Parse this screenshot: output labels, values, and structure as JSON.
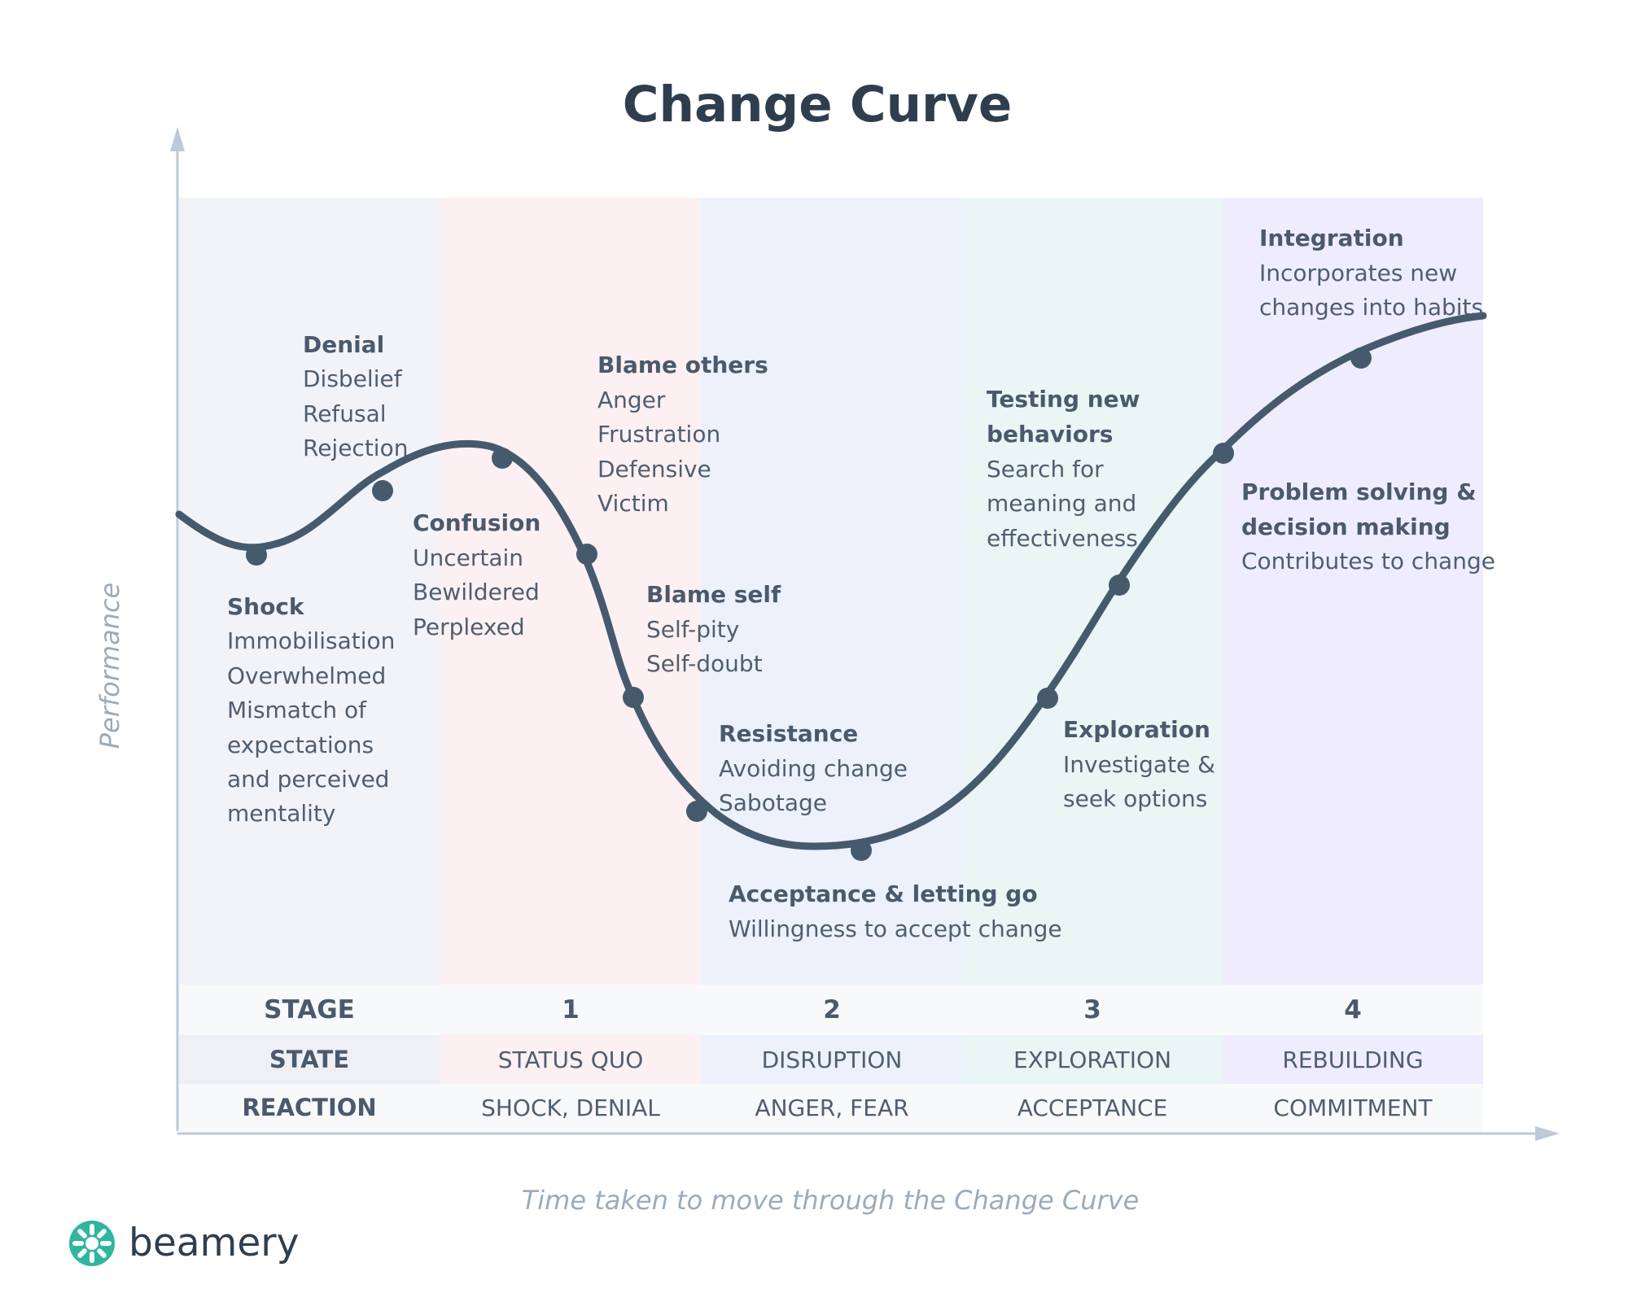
{
  "title": "Change Curve",
  "y_axis_label": "Performance",
  "x_axis_label": "Time taken to move through the Change Curve",
  "brand": {
    "name": "beamery",
    "color": "#2fb5a0"
  },
  "colors": {
    "curve": "#465a6e",
    "axis": "#bcc9d6",
    "bands": [
      "#f2f3f8",
      "#fdf0f2",
      "#ecf1fc",
      "#eaf6f5",
      "#efedfd"
    ],
    "row_header": "#f7f8fa"
  },
  "labels": {
    "shock": {
      "title": "Shock",
      "lines": [
        "Immobilisation",
        "Overwhelmed",
        "Mismatch of",
        "expectations",
        "and perceived",
        "mentality"
      ]
    },
    "denial": {
      "title": "Denial",
      "lines": [
        "Disbelief",
        "Refusal",
        "Rejection"
      ]
    },
    "confusion": {
      "title": "Confusion",
      "lines": [
        "Uncertain",
        "Bewildered",
        "Perplexed"
      ]
    },
    "blame_others": {
      "title": "Blame others",
      "lines": [
        "Anger",
        "Frustration",
        "Defensive",
        "Victim"
      ]
    },
    "blame_self": {
      "title": "Blame self",
      "lines": [
        "Self-pity",
        "Self-doubt"
      ]
    },
    "resistance": {
      "title": "Resistance",
      "lines": [
        "Avoiding change",
        "Sabotage"
      ]
    },
    "acceptance": {
      "title": "Acceptance & letting go",
      "lines": [
        "Willingness to accept change"
      ]
    },
    "exploration": {
      "title": "Exploration",
      "lines": [
        "Investigate &",
        "seek options"
      ]
    },
    "testing": {
      "title_lines": [
        "Testing new",
        "behaviors"
      ],
      "lines": [
        "Search for",
        "meaning and",
        "effectiveness"
      ]
    },
    "problem_solving": {
      "title_lines": [
        "Problem solving &",
        "decision making"
      ],
      "lines": [
        "Contributes to change"
      ]
    },
    "integration": {
      "title": "Integration",
      "lines": [
        "Incorporates new",
        "changes into habits"
      ]
    }
  },
  "table": {
    "stage": {
      "header": "STAGE",
      "values": [
        "1",
        "2",
        "3",
        "4"
      ]
    },
    "state": {
      "header": "STATE",
      "values": [
        "STATUS QUO",
        "DISRUPTION",
        "EXPLORATION",
        "REBUILDING"
      ]
    },
    "reaction": {
      "header": "REACTION",
      "values": [
        "SHOCK, DENIAL",
        "ANGER, FEAR",
        "ACCEPTANCE",
        "COMMITMENT"
      ]
    }
  }
}
